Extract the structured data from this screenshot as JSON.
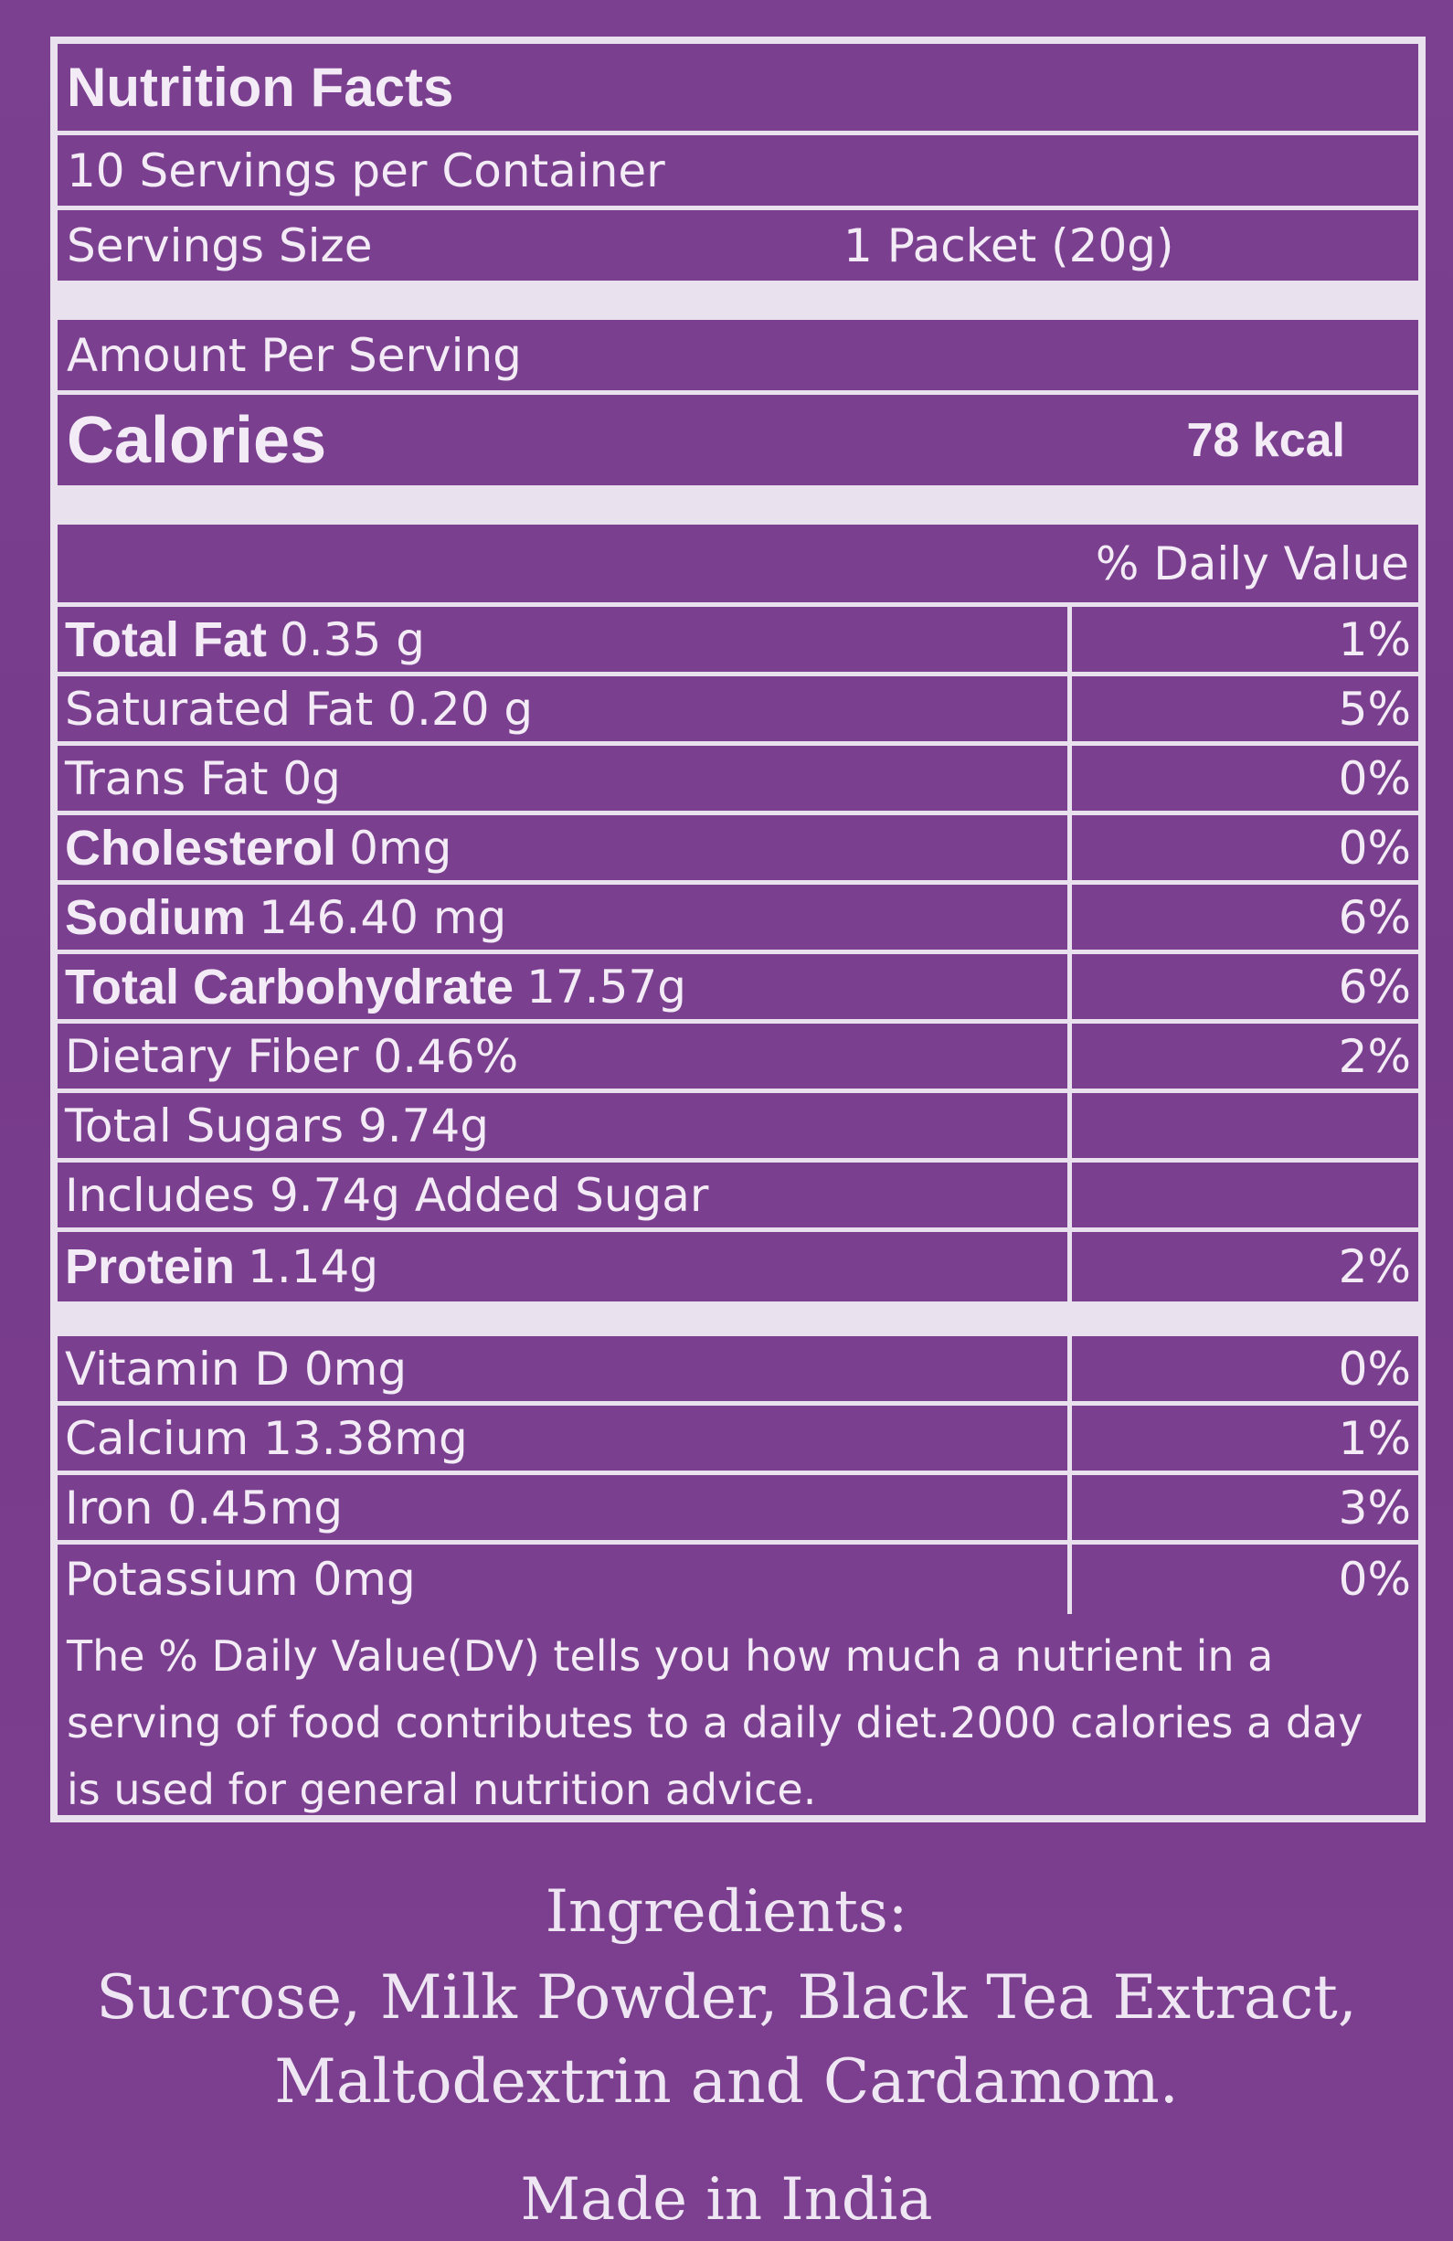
{
  "label": {
    "title": "Nutrition Facts",
    "servings_per_container": "10 Servings per Container",
    "serving_size_label": "Servings Size",
    "serving_size_value": "1 Packet (20g)",
    "amount_per_serving": "Amount Per Serving",
    "calories_label": "Calories",
    "calories_value": "78 kcal",
    "daily_value_header": "% Daily Value",
    "nutrients": [
      {
        "bold": "Total Fat",
        "value": "0.35 g",
        "pct": "1%"
      },
      {
        "bold": "",
        "value": "Saturated Fat 0.20 g",
        "pct": "5%"
      },
      {
        "bold": "",
        "value": "Trans Fat 0g",
        "pct": "0%"
      },
      {
        "bold": "Cholesterol",
        "value": "0mg",
        "pct": "0%"
      },
      {
        "bold": "Sodium",
        "value": "146.40 mg",
        "pct": "6%"
      },
      {
        "bold": "Total Carbohydrate",
        "value": "17.57g",
        "pct": "6%"
      },
      {
        "bold": "",
        "value": "Dietary Fiber 0.46%",
        "pct": "2%"
      },
      {
        "bold": "",
        "value": "Total Sugars 9.74g",
        "pct": ""
      },
      {
        "bold": "",
        "value": "Includes 9.74g Added Sugar",
        "pct": ""
      },
      {
        "bold": "Protein",
        "value": "1.14g",
        "pct": "2%"
      }
    ],
    "vitamins": [
      {
        "value": "Vitamin D 0mg",
        "pct": "0%"
      },
      {
        "value": "Calcium 13.38mg",
        "pct": "1%"
      },
      {
        "value": "Iron 0.45mg",
        "pct": "3%"
      },
      {
        "value": "Potassium 0mg",
        "pct": "0%"
      }
    ],
    "footnote": "The % Daily Value(DV) tells you how much a nutrient in a serving of food contributes to a daily diet.2000 calories a day is used for general nutrition advice."
  },
  "ingredients": {
    "title": "Ingredients:",
    "line1": "Sucrose, Milk Powder, Black Tea Extract,",
    "line2": "Maltodextrin and Cardamom."
  },
  "origin": "Made in India"
}
